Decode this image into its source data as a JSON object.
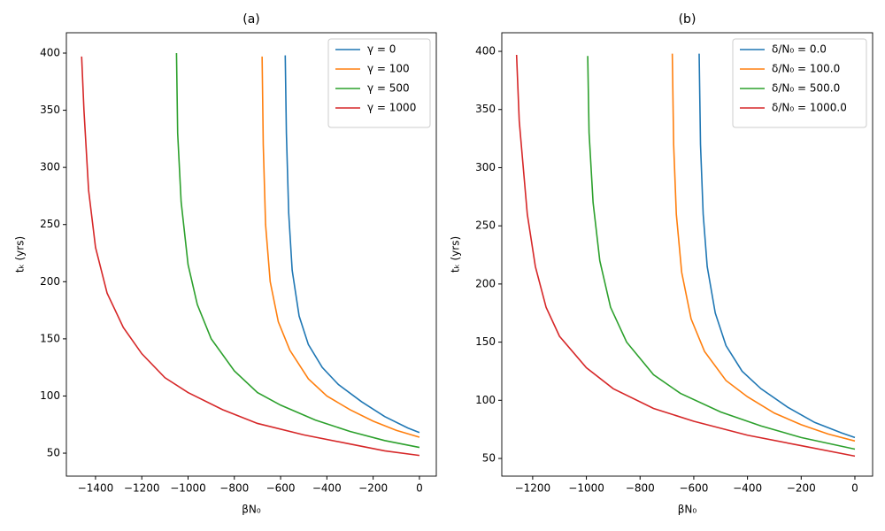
{
  "chart_data": [
    {
      "type": "line",
      "title": "(a)",
      "x_label": "βN₀",
      "y_label": "tₖ (yrs)",
      "legend": "upper right",
      "xlim": [
        -1526,
        73
      ],
      "ylim": [
        29.9,
        417.8
      ],
      "xticks": [
        {
          "value": -1400,
          "label": "−1400"
        },
        {
          "value": -1200,
          "label": "−1200"
        },
        {
          "value": -1000,
          "label": "−1000"
        },
        {
          "value": -800,
          "label": "−800"
        },
        {
          "value": -600,
          "label": "−600"
        },
        {
          "value": -400,
          "label": "−400"
        },
        {
          "value": -200,
          "label": "−200"
        },
        0
      ],
      "yticks": [
        50,
        100,
        150,
        200,
        250,
        300,
        350,
        400
      ],
      "series": [
        {
          "name": "γ = 0",
          "color": "#1f77b4",
          "x": [
            -580,
            -575,
            -565,
            -550,
            -520,
            -480,
            -420,
            -350,
            -250,
            -150,
            -50,
            0
          ],
          "values": [
            398,
            330,
            260,
            210,
            170,
            145,
            125,
            110,
            95,
            82,
            72,
            68
          ]
        },
        {
          "name": "γ = 100",
          "color": "#ff7f0e",
          "x": [
            -680,
            -675,
            -665,
            -645,
            -610,
            -560,
            -480,
            -400,
            -300,
            -200,
            -100,
            0
          ],
          "values": [
            397,
            320,
            250,
            200,
            165,
            140,
            115,
            100,
            88,
            78,
            70,
            64
          ]
        },
        {
          "name": "γ = 500",
          "color": "#2ca02c",
          "x": [
            -1050,
            -1045,
            -1030,
            -1000,
            -960,
            -900,
            -800,
            -700,
            -600,
            -450,
            -300,
            -150,
            0
          ],
          "values": [
            400,
            330,
            270,
            215,
            180,
            150,
            122,
            103,
            92,
            79,
            69,
            61,
            55
          ]
        },
        {
          "name": "γ = 1000",
          "color": "#d62728",
          "x": [
            -1460,
            -1450,
            -1430,
            -1400,
            -1350,
            -1280,
            -1200,
            -1100,
            -1000,
            -850,
            -700,
            -500,
            -300,
            -150,
            0
          ],
          "values": [
            397,
            350,
            280,
            230,
            190,
            160,
            137,
            116,
            103,
            88,
            76,
            66,
            58,
            52,
            48
          ]
        }
      ]
    },
    {
      "type": "line",
      "title": "(b)",
      "x_label": "βN₀",
      "y_label": "tₖ (yrs)",
      "legend": "upper right",
      "xlim": [
        -1315,
        66
      ],
      "ylim": [
        34.8,
        416
      ],
      "xticks": [
        {
          "value": -1200,
          "label": "−1200"
        },
        {
          "value": -1000,
          "label": "−1000"
        },
        {
          "value": -800,
          "label": "−800"
        },
        {
          "value": -600,
          "label": "−600"
        },
        {
          "value": -400,
          "label": "−400"
        },
        {
          "value": -200,
          "label": "−200"
        },
        0
      ],
      "yticks": [
        50,
        100,
        150,
        200,
        250,
        300,
        350,
        400
      ],
      "series": [
        {
          "name": "δ/N₀ = 0.0",
          "color": "#1f77b4",
          "x": [
            -580,
            -575,
            -565,
            -550,
            -520,
            -480,
            -420,
            -350,
            -250,
            -150,
            -50,
            0
          ],
          "values": [
            398,
            320,
            260,
            215,
            175,
            147,
            125,
            110,
            94,
            81,
            72,
            68
          ]
        },
        {
          "name": "δ/N₀ = 100.0",
          "color": "#ff7f0e",
          "x": [
            -680,
            -675,
            -665,
            -645,
            -610,
            -560,
            -480,
            -400,
            -300,
            -200,
            -100,
            0
          ],
          "values": [
            398,
            320,
            260,
            210,
            170,
            142,
            117,
            103,
            89,
            79,
            71,
            65
          ]
        },
        {
          "name": "δ/N₀ = 500.0",
          "color": "#2ca02c",
          "x": [
            -995,
            -990,
            -975,
            -950,
            -910,
            -850,
            -750,
            -650,
            -500,
            -350,
            -200,
            0
          ],
          "values": [
            396,
            330,
            270,
            220,
            180,
            150,
            122,
            106,
            90,
            78,
            68,
            58
          ]
        },
        {
          "name": "δ/N₀ = 1000.0",
          "color": "#d62728",
          "x": [
            -1260,
            -1250,
            -1235,
            -1220,
            -1190,
            -1150,
            -1100,
            -1000,
            -900,
            -750,
            -600,
            -400,
            -200,
            0
          ],
          "values": [
            397,
            340,
            300,
            260,
            215,
            180,
            155,
            128,
            110,
            93,
            82,
            70,
            61,
            52
          ]
        }
      ]
    }
  ]
}
